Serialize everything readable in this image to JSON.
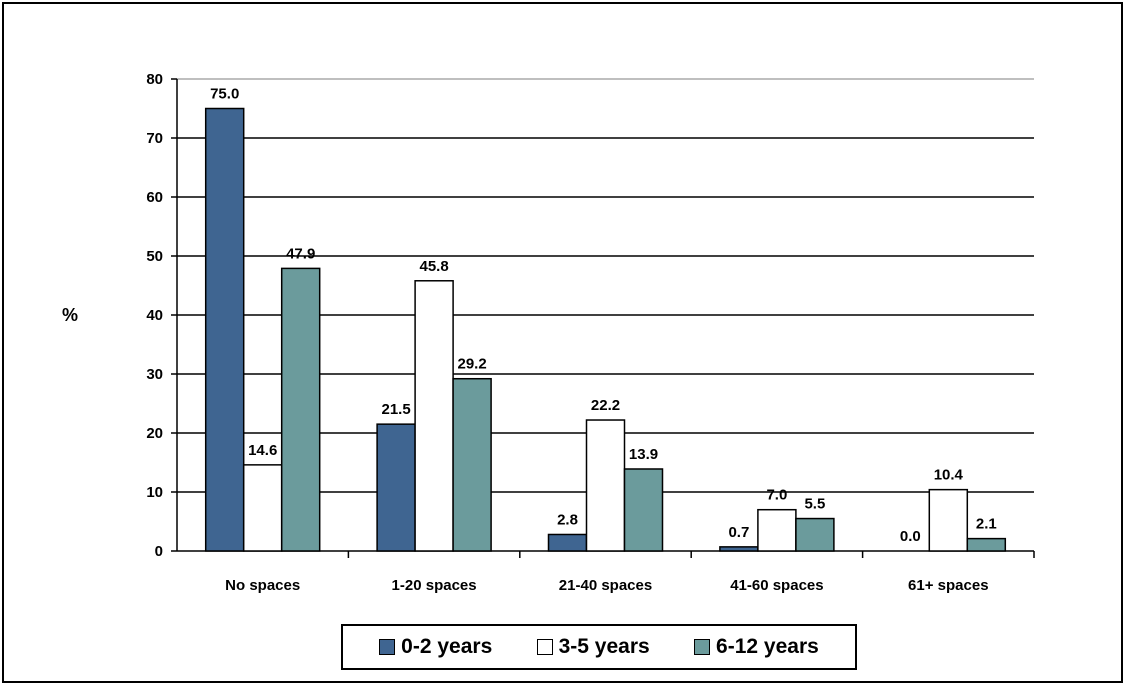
{
  "chart_data": {
    "type": "bar",
    "ylabel": "%",
    "ylim": [
      0,
      80
    ],
    "yticks": [
      0,
      10,
      20,
      30,
      40,
      50,
      60,
      70,
      80
    ],
    "grid": true,
    "legend_position": "bottom",
    "categories": [
      "No spaces",
      "1-20 spaces",
      "21-40 spaces",
      "41-60 spaces",
      "61+ spaces"
    ],
    "series": [
      {
        "name": "0-2 years",
        "color": "#3f6591",
        "values": [
          75.0,
          21.5,
          2.8,
          0.7,
          0.0
        ],
        "labels": [
          "75.0",
          "21.5",
          "2.8",
          "0.7",
          "0.0"
        ]
      },
      {
        "name": "3-5 years",
        "color": "#ffffff",
        "values": [
          14.6,
          45.8,
          22.2,
          7.0,
          10.4
        ],
        "labels": [
          "14.6",
          "45.8",
          "22.2",
          "7.0",
          "10.4"
        ]
      },
      {
        "name": "6-12 years",
        "color": "#6b9b9c",
        "values": [
          47.9,
          29.2,
          13.9,
          5.5,
          2.1
        ],
        "labels": [
          "47.9",
          "29.2",
          "13.9",
          "5.5",
          "2.1"
        ]
      }
    ]
  }
}
